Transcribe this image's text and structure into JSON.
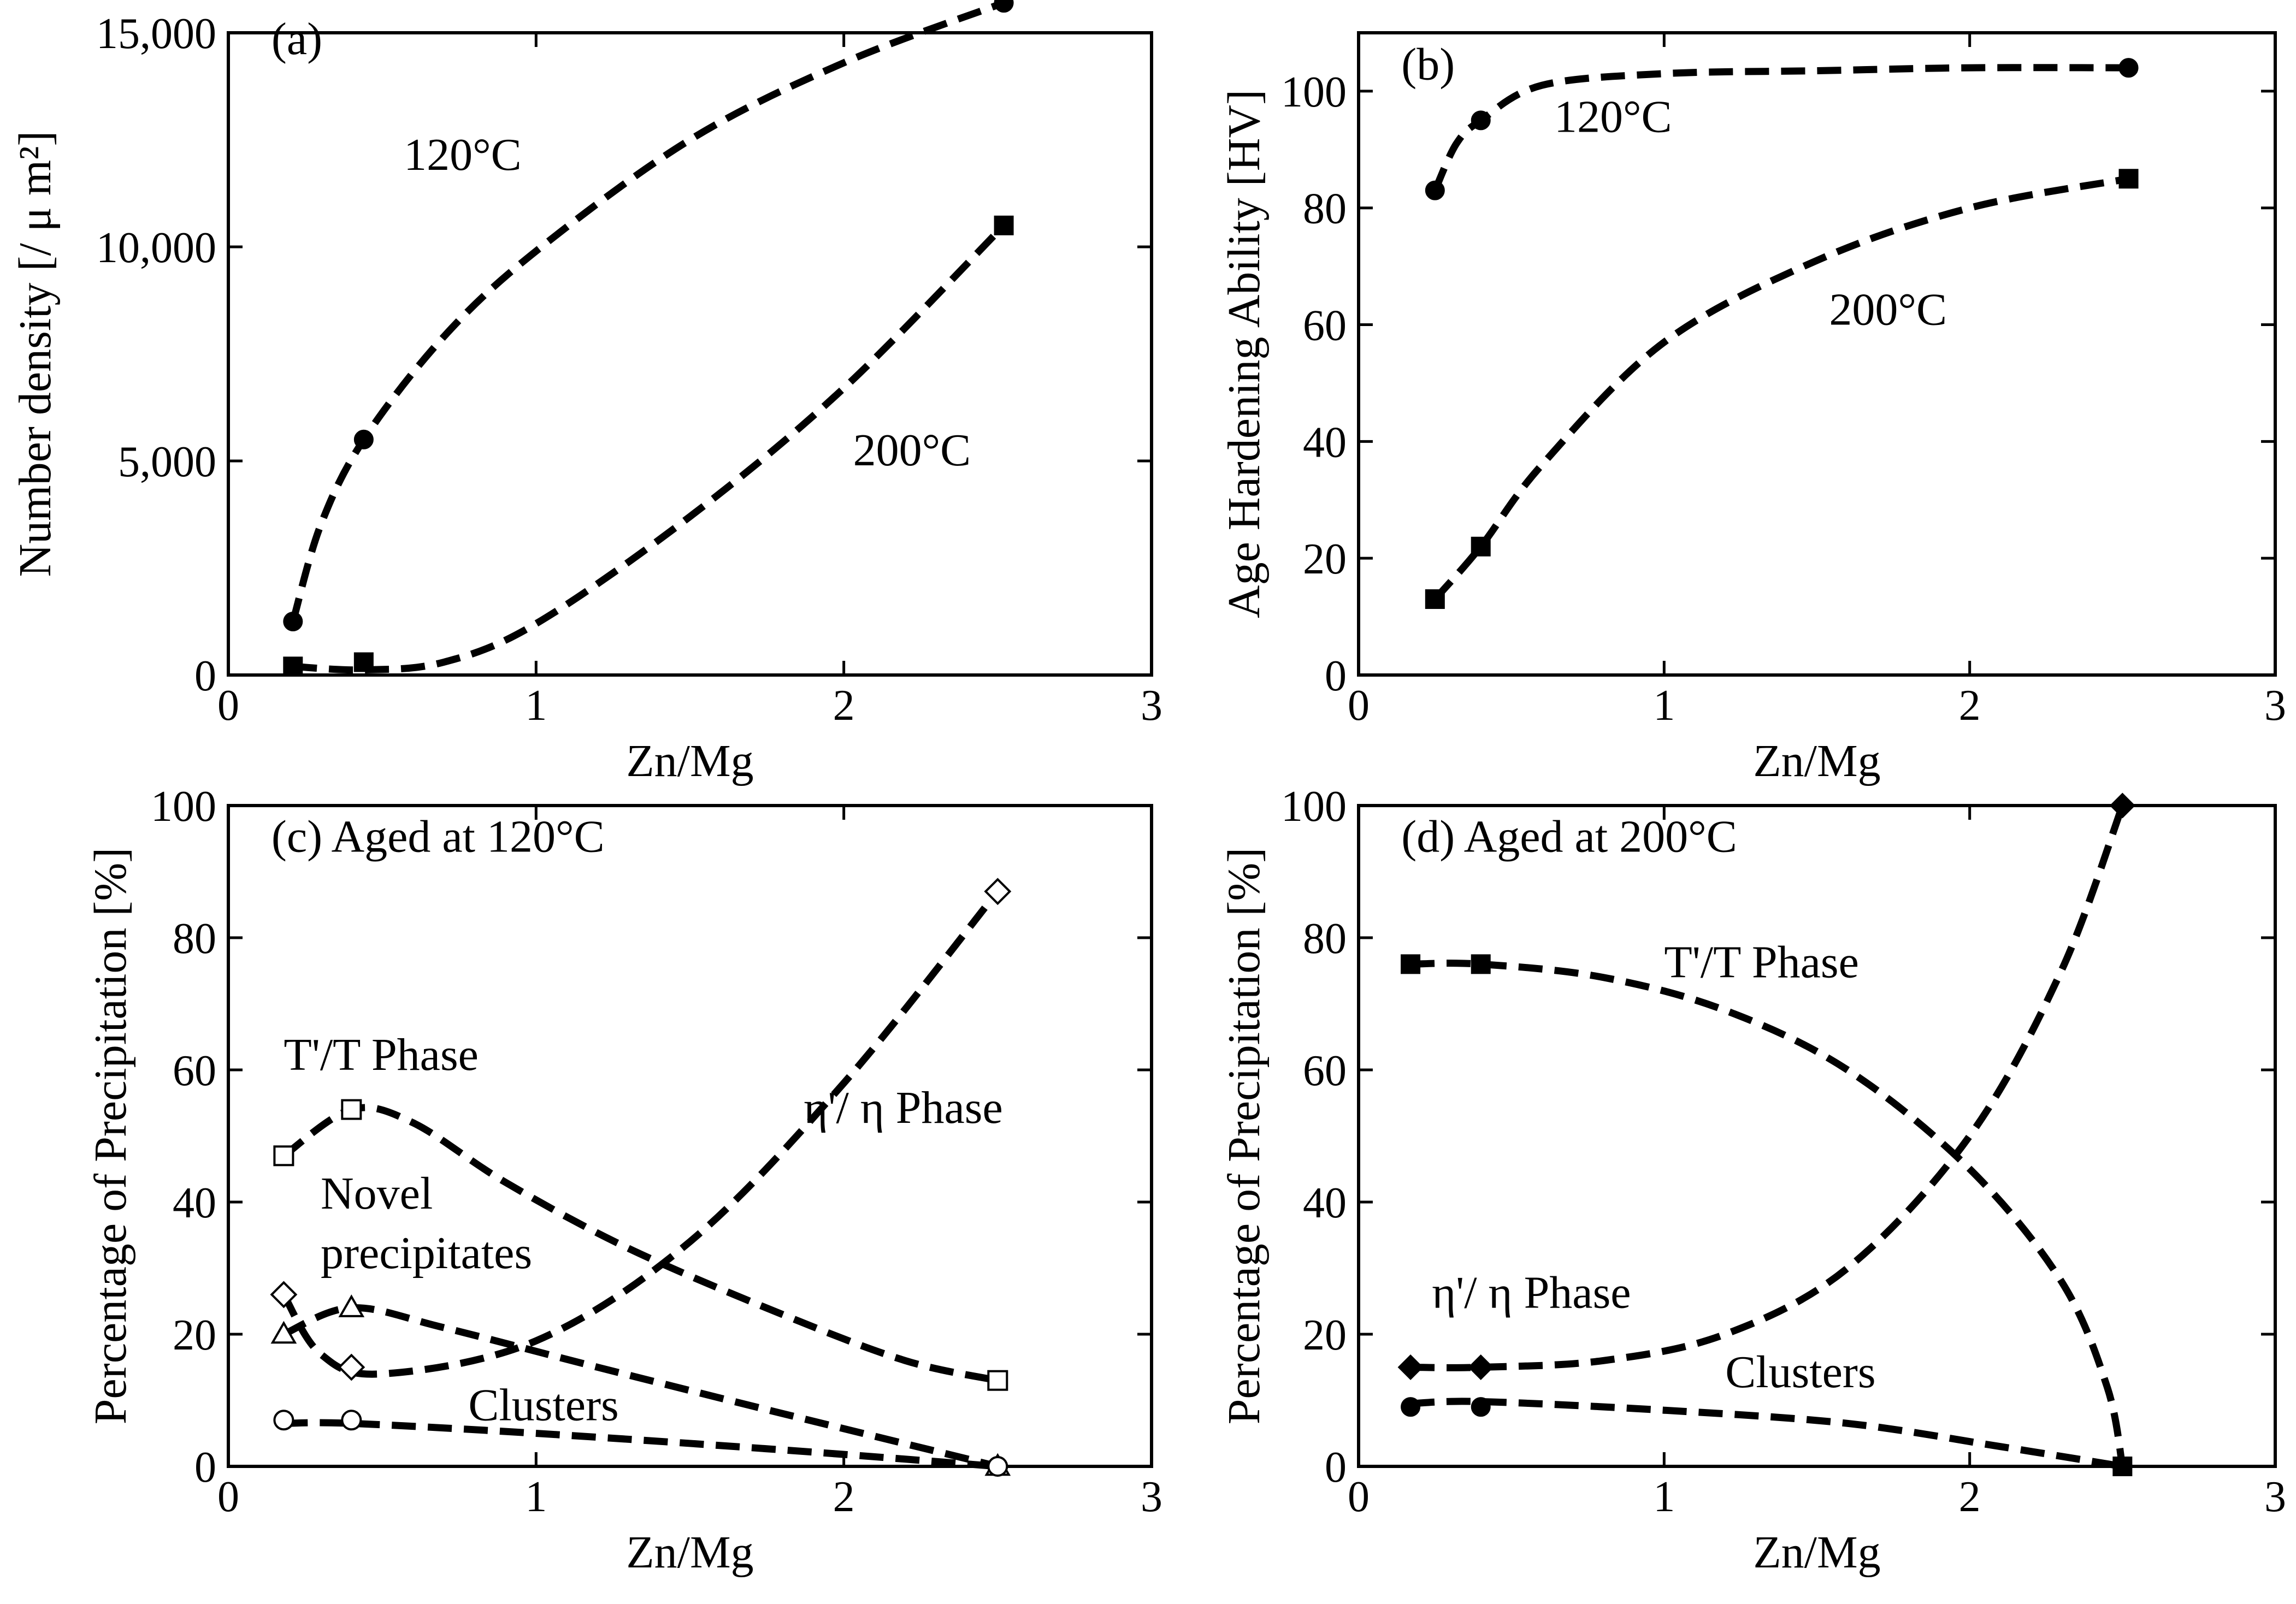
{
  "chart_data": [
    {
      "panel": "(a)",
      "type": "line",
      "xlabel": "Zn/Mg",
      "ylabel": "Number density [/ μ m²]",
      "xlim": [
        0,
        3
      ],
      "ylim": [
        0,
        15000
      ],
      "xticks": [
        0,
        1,
        2,
        3
      ],
      "yticks": [
        0,
        5000,
        10000,
        15000
      ],
      "yticklabels": [
        "0",
        "5,000",
        "10,000",
        "15,000"
      ],
      "series": [
        {
          "name": "120°C",
          "marker": "circle-filled",
          "points": [
            [
              0.21,
              1250
            ],
            [
              0.44,
              5500
            ],
            [
              2.52,
              15700
            ]
          ],
          "curve": [
            [
              0.21,
              1250
            ],
            [
              0.3,
              3500
            ],
            [
              0.44,
              5500
            ],
            [
              0.7,
              7900
            ],
            [
              1.0,
              9900
            ],
            [
              1.5,
              12500
            ],
            [
              2.0,
              14300
            ],
            [
              2.52,
              15700
            ]
          ]
        },
        {
          "name": "200°C",
          "marker": "square-filled",
          "points": [
            [
              0.21,
              200
            ],
            [
              0.44,
              300
            ],
            [
              2.52,
              10500
            ]
          ],
          "curve": [
            [
              0.21,
              200
            ],
            [
              0.44,
              120
            ],
            [
              0.7,
              300
            ],
            [
              1.0,
              1200
            ],
            [
              1.5,
              3700
            ],
            [
              2.0,
              6700
            ],
            [
              2.52,
              10500
            ]
          ]
        }
      ],
      "annotations": [
        {
          "text": "(a)",
          "x": 0.14,
          "y": 14500
        },
        {
          "text": "120°C",
          "x": 0.57,
          "y": 11800
        },
        {
          "text": "200°C",
          "x": 2.03,
          "y": 4900
        }
      ]
    },
    {
      "panel": "(b)",
      "type": "line",
      "xlabel": "Zn/Mg",
      "ylabel": "Age Hardening Ability [HV]",
      "xlim": [
        0,
        3
      ],
      "ylim": [
        0,
        110
      ],
      "xticks": [
        0,
        1,
        2,
        3
      ],
      "yticks": [
        0,
        20,
        40,
        60,
        80,
        100
      ],
      "yticklabels": [
        "0",
        "20",
        "40",
        "60",
        "80",
        "100"
      ],
      "series": [
        {
          "name": "120°C",
          "marker": "circle-filled",
          "points": [
            [
              0.25,
              83
            ],
            [
              0.4,
              95
            ],
            [
              2.52,
              104
            ]
          ],
          "curve": [
            [
              0.25,
              83
            ],
            [
              0.32,
              91
            ],
            [
              0.4,
              95
            ],
            [
              0.6,
              101
            ],
            [
              1.0,
              103
            ],
            [
              1.5,
              103.5
            ],
            [
              2.0,
              104
            ],
            [
              2.52,
              104
            ]
          ]
        },
        {
          "name": "200°C",
          "marker": "square-filled",
          "points": [
            [
              0.25,
              13
            ],
            [
              0.4,
              22
            ],
            [
              2.52,
              85
            ]
          ],
          "curve": [
            [
              0.25,
              13
            ],
            [
              0.4,
              22
            ],
            [
              0.6,
              36
            ],
            [
              1.0,
              57
            ],
            [
              1.5,
              71
            ],
            [
              2.0,
              80
            ],
            [
              2.52,
              85
            ]
          ]
        }
      ],
      "annotations": [
        {
          "text": "(b)",
          "x": 0.14,
          "y": 102
        },
        {
          "text": "120°C",
          "x": 0.64,
          "y": 93
        },
        {
          "text": "200°C",
          "x": 1.54,
          "y": 60
        }
      ]
    },
    {
      "panel": "(c)",
      "type": "line",
      "xlabel": "Zn/Mg",
      "ylabel": "Percentage of Precipitation [%]",
      "xlim": [
        0,
        3
      ],
      "ylim": [
        0,
        100
      ],
      "xticks": [
        0,
        1,
        2,
        3
      ],
      "yticks": [
        0,
        20,
        40,
        60,
        80,
        100
      ],
      "yticklabels": [
        "0",
        "20",
        "40",
        "60",
        "80",
        "100"
      ],
      "series": [
        {
          "name": "T'/T Phase",
          "marker": "square-open",
          "points": [
            [
              0.18,
              47
            ],
            [
              0.4,
              54
            ],
            [
              2.5,
              13
            ]
          ],
          "curve": [
            [
              0.18,
              47
            ],
            [
              0.4,
              54
            ],
            [
              0.6,
              52
            ],
            [
              0.9,
              43
            ],
            [
              1.3,
              33
            ],
            [
              1.8,
              23
            ],
            [
              2.2,
              16
            ],
            [
              2.5,
              13
            ]
          ]
        },
        {
          "name": "η'/ η Phase",
          "marker": "diamond-open",
          "points": [
            [
              0.18,
              26
            ],
            [
              0.4,
              15
            ],
            [
              2.5,
              87
            ]
          ],
          "curve": [
            [
              0.18,
              26
            ],
            [
              0.3,
              17
            ],
            [
              0.5,
              14
            ],
            [
              1.0,
              19
            ],
            [
              1.5,
              34
            ],
            [
              2.0,
              58
            ],
            [
              2.5,
              87
            ]
          ]
        },
        {
          "name": "Novel precipitates",
          "marker": "triangle-open",
          "points": [
            [
              0.18,
              20
            ],
            [
              0.4,
              24
            ],
            [
              2.5,
              0
            ]
          ],
          "curve": [
            [
              0.18,
              20
            ],
            [
              0.4,
              24
            ],
            [
              0.7,
              21
            ],
            [
              1.2,
              15
            ],
            [
              1.8,
              8
            ],
            [
              2.5,
              0
            ]
          ]
        },
        {
          "name": "Clusters",
          "marker": "circle-open",
          "points": [
            [
              0.18,
              7
            ],
            [
              0.4,
              7
            ],
            [
              2.5,
              0
            ]
          ],
          "curve": [
            [
              0.18,
              6.5
            ],
            [
              0.4,
              6.5
            ],
            [
              1.0,
              5
            ],
            [
              1.8,
              2.5
            ],
            [
              2.5,
              0
            ]
          ]
        }
      ],
      "annotations": [
        {
          "text": "(c) Aged at 120°C",
          "x": 0.14,
          "y": 93
        },
        {
          "text": "T'/T Phase",
          "x": 0.18,
          "y": 60
        },
        {
          "text": "Novel",
          "x": 0.3,
          "y": 39
        },
        {
          "text": "precipitates",
          "x": 0.3,
          "y": 30
        },
        {
          "text": "η'/ η Phase",
          "x": 1.87,
          "y": 52
        },
        {
          "text": "Clusters",
          "x": 0.78,
          "y": 7
        }
      ]
    },
    {
      "panel": "(d)",
      "type": "line",
      "xlabel": "Zn/Mg",
      "ylabel": "Percentage of Precipitation [%]",
      "xlim": [
        0,
        3
      ],
      "ylim": [
        0,
        100
      ],
      "xticks": [
        0,
        1,
        2,
        3
      ],
      "yticks": [
        0,
        20,
        40,
        60,
        80,
        100
      ],
      "yticklabels": [
        "0",
        "20",
        "40",
        "60",
        "80",
        "100"
      ],
      "series": [
        {
          "name": "T'/T Phase",
          "marker": "square-filled",
          "points": [
            [
              0.17,
              76
            ],
            [
              0.4,
              76
            ],
            [
              2.5,
              0
            ]
          ],
          "curve": [
            [
              0.17,
              76
            ],
            [
              0.4,
              76
            ],
            [
              0.8,
              74
            ],
            [
              1.2,
              69
            ],
            [
              1.6,
              60
            ],
            [
              2.0,
              45
            ],
            [
              2.3,
              28
            ],
            [
              2.45,
              12
            ],
            [
              2.5,
              0
            ]
          ]
        },
        {
          "name": "η'/ η Phase",
          "marker": "diamond-filled",
          "points": [
            [
              0.17,
              15
            ],
            [
              0.4,
              15
            ],
            [
              2.5,
              100
            ]
          ],
          "curve": [
            [
              0.17,
              15
            ],
            [
              0.4,
              15
            ],
            [
              0.8,
              16
            ],
            [
              1.2,
              20
            ],
            [
              1.6,
              30
            ],
            [
              2.0,
              50
            ],
            [
              2.3,
              75
            ],
            [
              2.5,
              100
            ]
          ]
        },
        {
          "name": "Clusters",
          "marker": "circle-filled",
          "points": [
            [
              0.17,
              9
            ],
            [
              0.4,
              9
            ],
            [
              2.5,
              0
            ]
          ],
          "curve": [
            [
              0.17,
              9.5
            ],
            [
              0.4,
              9.8
            ],
            [
              1.0,
              8.5
            ],
            [
              1.6,
              6.5
            ],
            [
              2.1,
              3
            ],
            [
              2.5,
              0
            ]
          ]
        }
      ],
      "annotations": [
        {
          "text": "(d) Aged at 200°C",
          "x": 0.14,
          "y": 93
        },
        {
          "text": "T'/T Phase",
          "x": 1.0,
          "y": 74
        },
        {
          "text": "η'/ η Phase",
          "x": 0.24,
          "y": 24
        },
        {
          "text": "Clusters",
          "x": 1.2,
          "y": 12
        }
      ]
    }
  ]
}
